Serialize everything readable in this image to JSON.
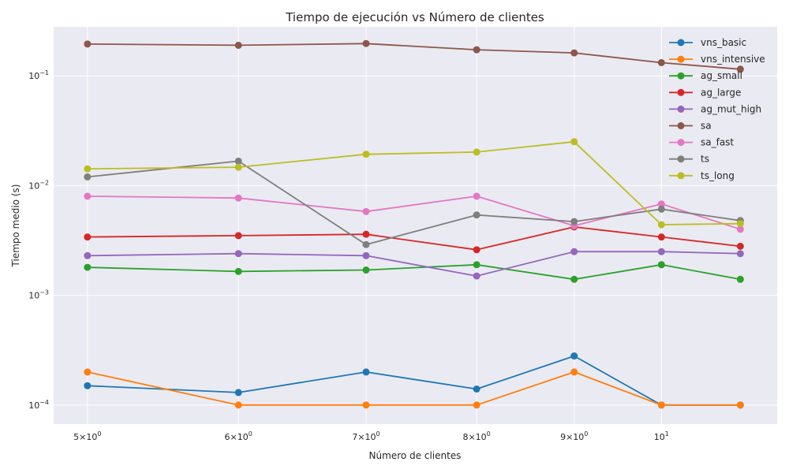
{
  "chart_data": {
    "type": "line",
    "title": "Tiempo de ejecución vs Número de clientes",
    "xlabel": "Número de clientes",
    "ylabel": "Tiempo medio (s)",
    "x_scale": "log",
    "y_scale": "log",
    "x": [
      5,
      6,
      7,
      8,
      9,
      10,
      11
    ],
    "xlim": [
      4.8,
      11.5
    ],
    "ylim": [
      6.7e-05,
      0.28
    ],
    "x_ticks": [
      {
        "value": 5,
        "base": "5",
        "sup": "0",
        "mult": true
      },
      {
        "value": 6,
        "base": "6",
        "sup": "0",
        "mult": true
      },
      {
        "value": 7,
        "base": "7",
        "sup": "0",
        "mult": true
      },
      {
        "value": 8,
        "base": "8",
        "sup": "0",
        "mult": true
      },
      {
        "value": 9,
        "base": "9",
        "sup": "0",
        "mult": true
      },
      {
        "value": 10,
        "base": "10",
        "sup": "1",
        "mult": false
      }
    ],
    "y_ticks": [
      {
        "value": 0.0001,
        "base": "10",
        "sup": "−4"
      },
      {
        "value": 0.001,
        "base": "10",
        "sup": "−3"
      },
      {
        "value": 0.01,
        "base": "10",
        "sup": "−2"
      },
      {
        "value": 0.1,
        "base": "10",
        "sup": "−1"
      }
    ],
    "grid": true,
    "legend_position": "top-right",
    "series": [
      {
        "name": "vns_basic",
        "color": "#1f77b4",
        "values": [
          0.00015,
          0.00013,
          0.0002,
          0.00014,
          0.00028,
          0.0001,
          0.0001
        ]
      },
      {
        "name": "vns_intensive",
        "color": "#ff7f0e",
        "values": [
          0.0002,
          0.0001,
          0.0001,
          0.0001,
          0.0002,
          0.0001,
          0.0001
        ]
      },
      {
        "name": "ag_small",
        "color": "#2ca02c",
        "values": [
          0.0018,
          0.00165,
          0.0017,
          0.0019,
          0.0014,
          0.0019,
          0.0014
        ]
      },
      {
        "name": "ag_large",
        "color": "#d62728",
        "values": [
          0.0034,
          0.0035,
          0.0036,
          0.0026,
          0.0042,
          0.0034,
          0.0028
        ]
      },
      {
        "name": "ag_mut_high",
        "color": "#9467bd",
        "values": [
          0.0023,
          0.0024,
          0.0023,
          0.0015,
          0.0025,
          0.0025,
          0.0024
        ]
      },
      {
        "name": "sa",
        "color": "#8c564b",
        "values": [
          0.195,
          0.19,
          0.197,
          0.173,
          0.162,
          0.132,
          0.115
        ]
      },
      {
        "name": "sa_fast",
        "color": "#e377c2",
        "values": [
          0.008,
          0.0077,
          0.0058,
          0.008,
          0.0043,
          0.0068,
          0.004
        ]
      },
      {
        "name": "ts",
        "color": "#7f7f7f",
        "values": [
          0.012,
          0.0167,
          0.0029,
          0.0054,
          0.0047,
          0.0061,
          0.0048
        ]
      },
      {
        "name": "ts_long",
        "color": "#bcbd22",
        "values": [
          0.0142,
          0.0147,
          0.0193,
          0.0202,
          0.0251,
          0.0044,
          0.0045
        ]
      }
    ]
  }
}
